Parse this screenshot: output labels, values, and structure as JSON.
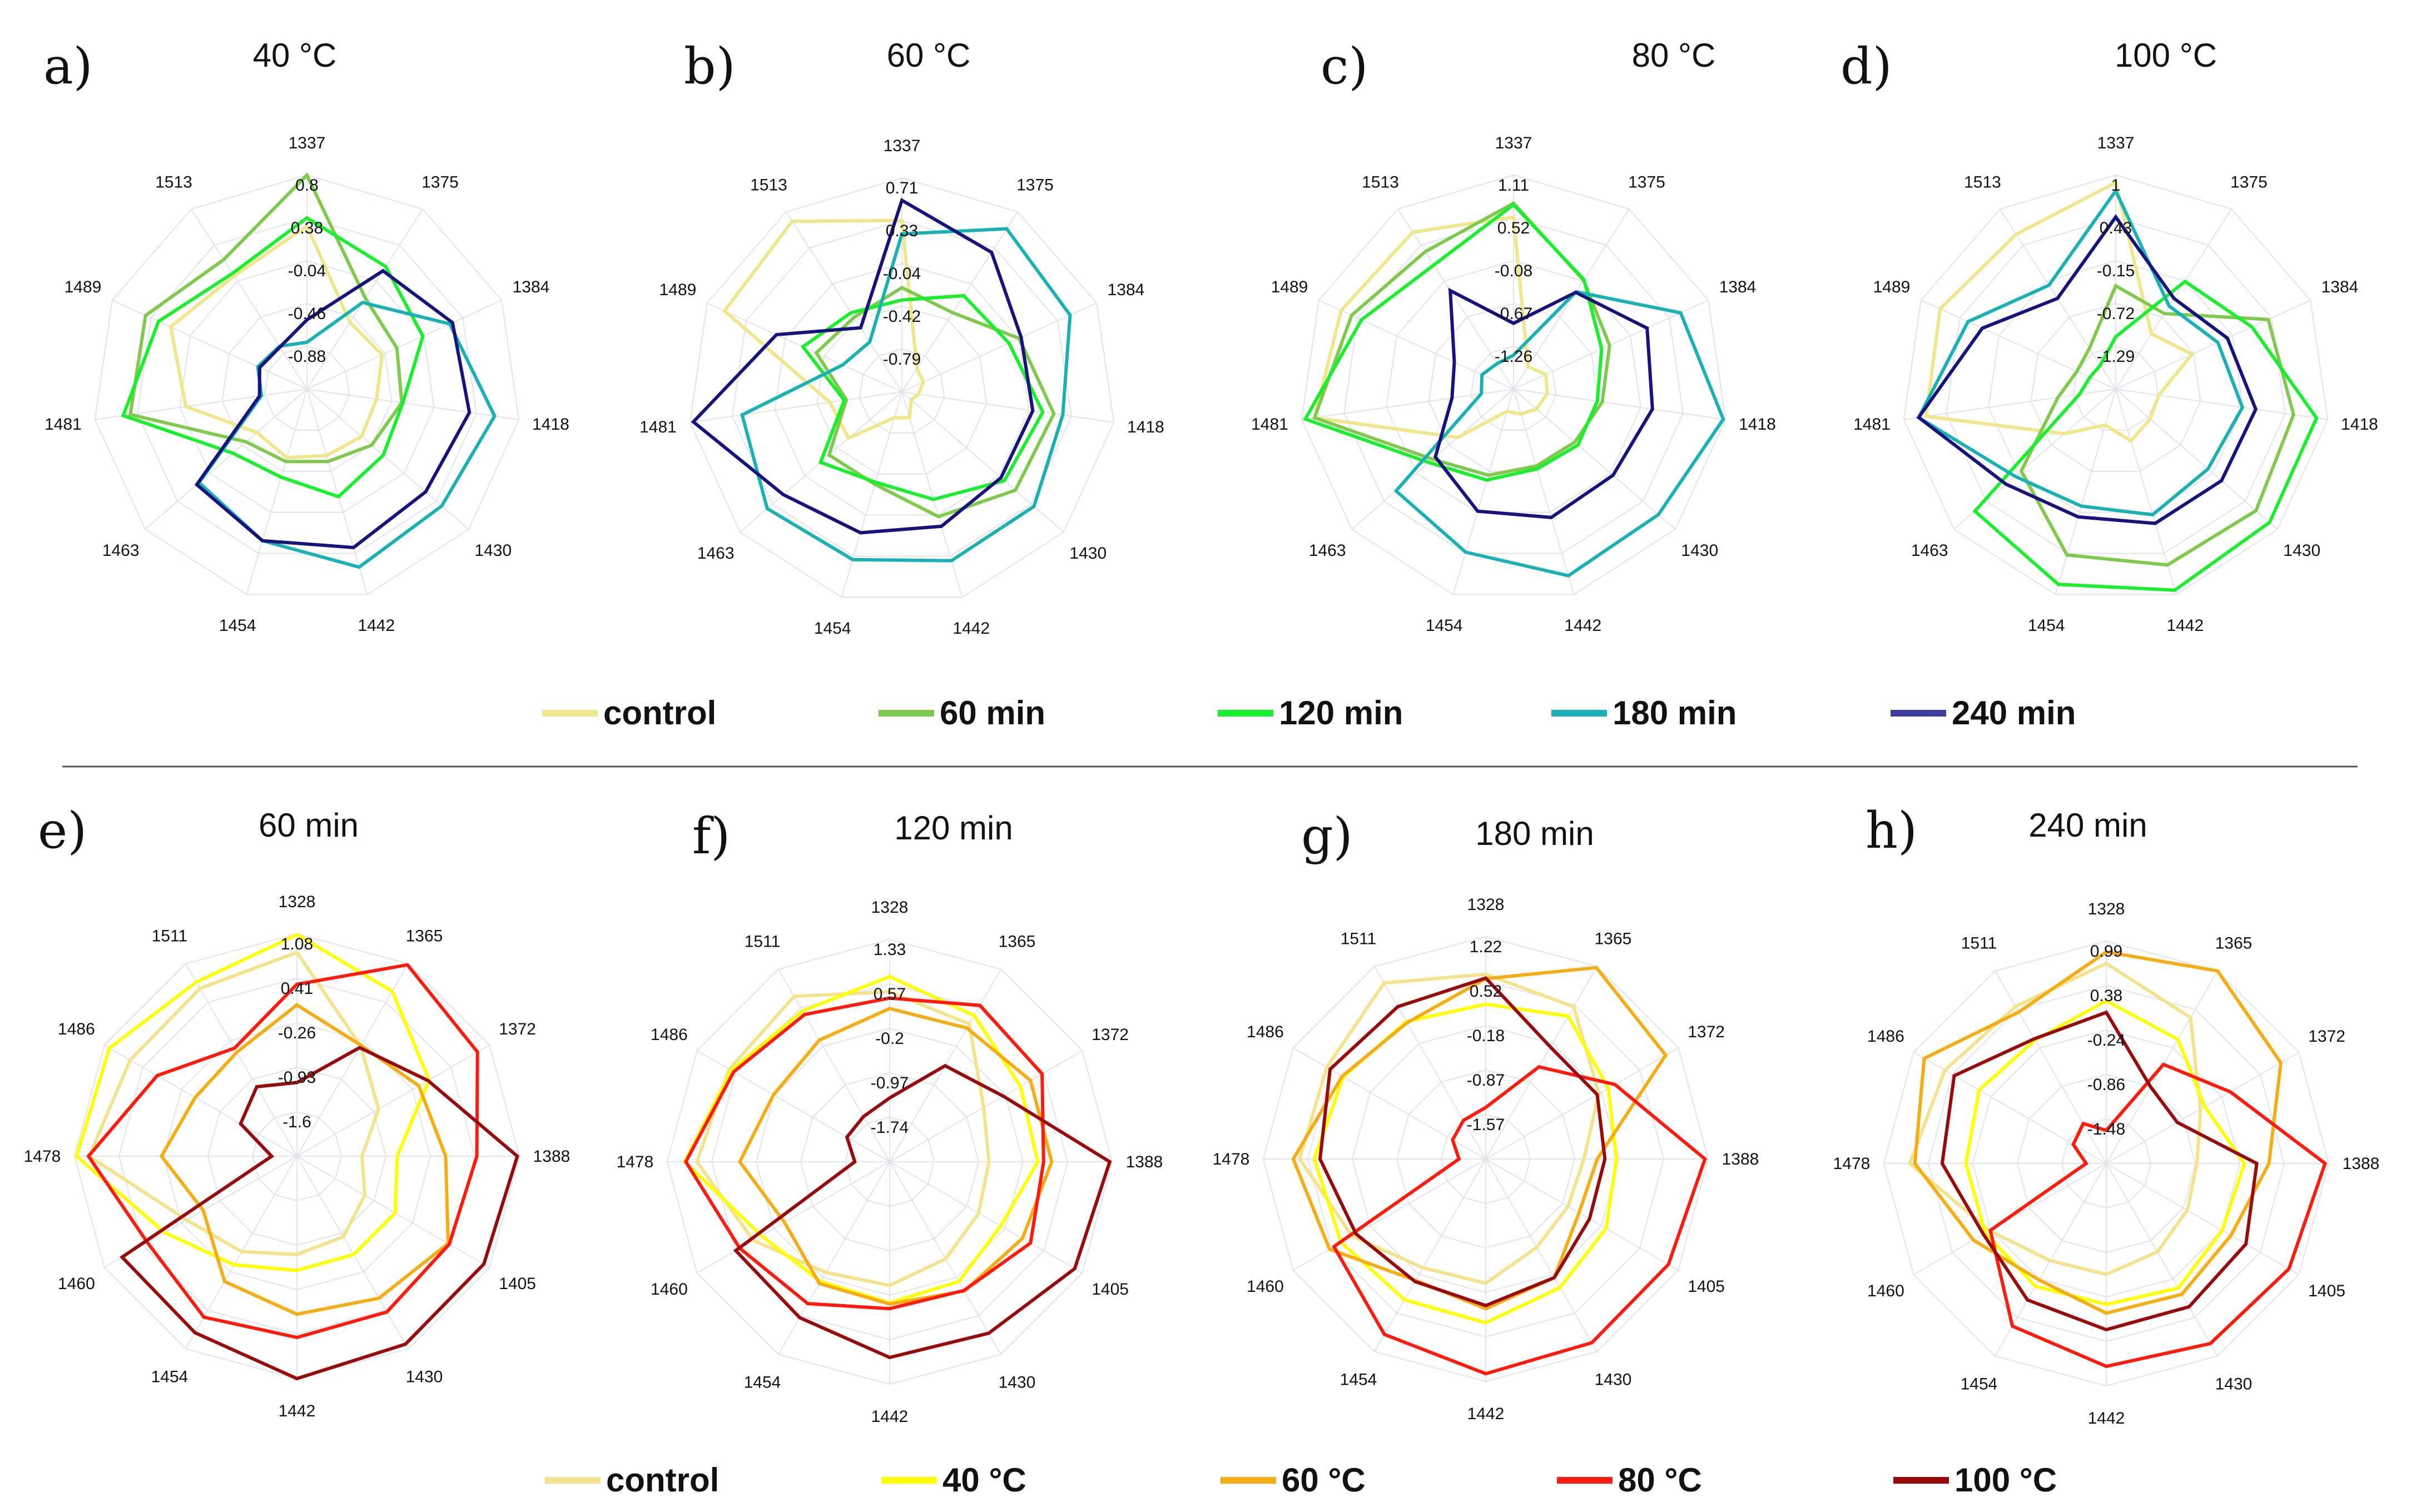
{
  "colors": {
    "control_time": "#f0e68c",
    "m60": "#7fca4d",
    "m120": "#19ef2d",
    "m180": "#1ab1b4",
    "m240": "#17137d",
    "control_temp": "#f4e38c",
    "c40": "#ffff00",
    "c60": "#f6ac13",
    "c80": "#ff1a0e",
    "c100": "#990b0b"
  },
  "legend_top": [
    {
      "label": "control",
      "color": "#f0e68c"
    },
    {
      "label": "60 min",
      "color": "#7fca4d"
    },
    {
      "label": "120 min",
      "color": "#19ef2d"
    },
    {
      "label": "180 min",
      "color": "#1ab1b4"
    },
    {
      "label": "240 min",
      "color": "#3d3d9e"
    }
  ],
  "legend_bottom": [
    {
      "label": "control",
      "color": "#f4e38c"
    },
    {
      "label": "40 °C",
      "color": "#ffff00"
    },
    {
      "label": "60 °C",
      "color": "#f6ac13"
    },
    {
      "label": "80 °C",
      "color": "#ff1a0e"
    },
    {
      "label": "100 °C",
      "color": "#990b0b"
    }
  ],
  "chart_data": [
    {
      "type": "radar",
      "letter": "a)",
      "title": "40 °C",
      "axes": [
        "1337",
        "1375",
        "1384",
        "1418",
        "1430",
        "1442",
        "1454",
        "1463",
        "1481",
        "1489",
        "1513"
      ],
      "tick_labels": [
        "0.8",
        "0.38",
        "-0.04",
        "-0.46",
        "-0.88"
      ],
      "range": [
        -1.3,
        0.8
      ],
      "series": [
        {
          "name": "control",
          "color": "#f0e68c",
          "values": [
            0.3,
            -0.52,
            -0.49,
            -0.61,
            -0.59,
            -0.62,
            -0.6,
            -0.65,
            -0.1,
            0.17,
            0.02
          ]
        },
        {
          "name": "60 min",
          "color": "#7fca4d",
          "values": [
            0.8,
            -0.24,
            -0.33,
            -0.36,
            -0.46,
            -0.56,
            -0.56,
            -0.51,
            0.45,
            0.44,
            0.21
          ]
        },
        {
          "name": "120 min",
          "color": "#19ef2d",
          "values": [
            0.38,
            0.13,
            -0.05,
            -0.35,
            -0.31,
            -0.2,
            -0.4,
            -0.34,
            0.52,
            0.3,
            0.05
          ]
        },
        {
          "name": "180 min",
          "color": "#1ab1b4",
          "values": [
            -0.84,
            -0.29,
            0.24,
            0.56,
            0.45,
            0.52,
            0.25,
            0.1,
            -0.85,
            -0.77,
            -0.8
          ]
        },
        {
          "name": "240 min",
          "color": "#17137d",
          "values": [
            -0.62,
            0.08,
            0.27,
            0.31,
            0.24,
            0.32,
            0.25,
            0.13,
            -0.83,
            -0.79,
            -0.81
          ]
        }
      ]
    },
    {
      "type": "radar",
      "letter": "b)",
      "title": "60 °C",
      "axes": [
        "1337",
        "1375",
        "1384",
        "1418",
        "1430",
        "1442",
        "1454",
        "1463",
        "1481",
        "1489",
        "1513"
      ],
      "tick_labels": [
        "0.71",
        "0.33",
        "-0.04",
        "-0.42",
        "-0.79"
      ],
      "range": [
        -1.2,
        0.71
      ],
      "series": [
        {
          "name": "control",
          "color": "#f0e68c",
          "values": [
            0.33,
            -0.95,
            -0.99,
            -1.05,
            -1.09,
            -0.96,
            -0.96,
            -0.57,
            -0.55,
            0.54,
            0.61
          ]
        },
        {
          "name": "60 min",
          "color": "#7fca4d",
          "values": [
            -0.27,
            -0.36,
            -0.05,
            0.17,
            0.14,
            -0.04,
            -0.34,
            -0.34,
            -0.7,
            -0.36,
            -0.41
          ]
        },
        {
          "name": "120 min",
          "color": "#19ef2d",
          "values": [
            -0.38,
            -0.18,
            -0.15,
            0.07,
            0.01,
            -0.2,
            -0.36,
            -0.24,
            -0.68,
            -0.23,
            -0.36
          ]
        },
        {
          "name": "180 min",
          "color": "#1ab1b4",
          "values": [
            0.21,
            0.53,
            0.45,
            0.25,
            0.36,
            0.37,
            0.36,
            0.39,
            0.24,
            -0.62,
            -0.67
          ]
        },
        {
          "name": "240 min",
          "color": "#17137d",
          "values": [
            0.51,
            0.28,
            -0.03,
            -0.02,
            -0.03,
            0.05,
            0.11,
            0.2,
            0.68,
            0.03,
            -0.52
          ]
        }
      ]
    },
    {
      "type": "radar",
      "letter": "c)",
      "title": "80 °C",
      "axes": [
        "1337",
        "1375",
        "1384",
        "1418",
        "1430",
        "1442",
        "1454",
        "1463",
        "1481",
        "1489",
        "1513"
      ],
      "tick_labels": [
        "1.11",
        "0.52",
        "-0.08",
        "-0.67",
        "-1.26"
      ],
      "range": [
        -1.85,
        1.11
      ],
      "series": [
        {
          "name": "control",
          "color": "#f0e68c",
          "values": [
            0.53,
            -1.48,
            -1.36,
            -1.38,
            -1.43,
            -1.49,
            -1.53,
            -0.83,
            0.93,
            0.77,
            0.73
          ]
        },
        {
          "name": "60 min",
          "color": "#7fca4d",
          "values": [
            0.72,
            -0.06,
            -0.39,
            -0.61,
            -0.73,
            -0.74,
            -0.61,
            -0.37,
            0.93,
            0.61,
            0.41
          ]
        },
        {
          "name": "120 min",
          "color": "#19ef2d",
          "values": [
            0.7,
            -0.05,
            -0.51,
            -0.68,
            -0.67,
            -0.7,
            -0.54,
            -0.3,
            1.06,
            0.46,
            0.19
          ]
        },
        {
          "name": "180 min",
          "color": "#1ab1b4",
          "values": [
            -1.38,
            -0.25,
            0.69,
            1.08,
            0.8,
            0.84,
            0.5,
            0.3,
            -1.4,
            -1.37,
            -1.43
          ]
        },
        {
          "name": "240 min",
          "color": "#17137d",
          "values": [
            -0.94,
            -0.26,
            0.18,
            0.09,
            -0.03,
            0.0,
            -0.09,
            -0.42,
            -0.99,
            -0.95,
            -0.23
          ]
        }
      ]
    },
    {
      "type": "radar",
      "letter": "d)",
      "title": "100 °C",
      "axes": [
        "1337",
        "1375",
        "1384",
        "1418",
        "1430",
        "1442",
        "1454",
        "1463",
        "1481",
        "1489",
        "1513"
      ],
      "tick_labels": [
        "1",
        "0.43",
        "-0.15",
        "-0.72",
        "-1.29"
      ],
      "range": [
        -1.86,
        1.0
      ],
      "series": [
        {
          "name": "control",
          "color": "#f0e68c",
          "values": [
            0.9,
            -0.98,
            -0.74,
            -1.28,
            -1.25,
            -1.14,
            -1.36,
            -0.95,
            0.7,
            0.72,
            0.6
          ]
        },
        {
          "name": "60 min",
          "color": "#7fca4d",
          "values": [
            -0.48,
            -0.66,
            0.38,
            0.54,
            0.62,
            0.59,
            0.45,
            -0.19,
            -1.08,
            -1.29,
            -1.21
          ]
        },
        {
          "name": "120 min",
          "color": "#19ef2d",
          "values": [
            -1.16,
            -0.15,
            0.14,
            0.85,
            0.86,
            0.94,
            0.86,
            0.63,
            -1.37,
            -1.48,
            -1.48
          ]
        },
        {
          "name": "180 min",
          "color": "#1ab1b4",
          "values": [
            0.79,
            -0.54,
            -0.36,
            -0.15,
            -0.23,
            -0.11,
            -0.23,
            -0.08,
            0.8,
            0.31,
            -0.21
          ]
        },
        {
          "name": "240 min",
          "color": "#17137d",
          "values": [
            0.44,
            -0.42,
            -0.22,
            0.03,
            0.01,
            0.01,
            -0.08,
            0.08,
            0.8,
            0.1,
            -0.42
          ]
        }
      ]
    },
    {
      "type": "radar",
      "letter": "e)",
      "title": "60 min",
      "axes": [
        "1328",
        "1365",
        "1372",
        "1388",
        "1405",
        "1430",
        "1442",
        "1454",
        "1460",
        "1478",
        "1486",
        "1511"
      ],
      "tick_labels": [
        "1.08",
        "0.41",
        "-0.26",
        "-0.93",
        "-1.6"
      ],
      "range": [
        -2.27,
        1.08
      ],
      "series": [
        {
          "name": "control",
          "color": "#f4e38c",
          "values": [
            0.8,
            -0.35,
            -0.85,
            -1.29,
            -1.09,
            -0.87,
            -0.79,
            -0.61,
            -0.35,
            0.86,
            0.63,
            0.65
          ]
        },
        {
          "name": "40 °C",
          "color": "#ffff00",
          "values": [
            1.07,
            0.6,
            0.03,
            -0.76,
            -0.56,
            -0.56,
            -0.55,
            -0.38,
            0.03,
            1.05,
            0.99,
            0.76
          ]
        },
        {
          "name": "60 °C",
          "color": "#f6ac13",
          "values": [
            0.01,
            -0.34,
            -0.15,
            -0.03,
            0.36,
            0.2,
            0.11,
            -0.09,
            -0.64,
            -0.23,
            -0.5,
            -0.46
          ]
        },
        {
          "name": "80 °C",
          "color": "#ff1a0e",
          "values": [
            0.32,
            1.06,
            0.87,
            0.44,
            0.38,
            0.44,
            0.46,
            0.53,
            0.33,
            0.87,
            0.16,
            -0.39
          ]
        },
        {
          "name": "100 °C",
          "color": "#990b0b",
          "values": [
            -1.16,
            -0.38,
            0.01,
            1.05,
            0.98,
            1.0,
            1.08,
            0.8,
            0.77,
            -1.89,
            -1.29,
            -1.06
          ]
        }
      ]
    },
    {
      "type": "radar",
      "letter": "f)",
      "title": "120 min",
      "axes": [
        "1328",
        "1365",
        "1372",
        "1388",
        "1405",
        "1430",
        "1442",
        "1454",
        "1460",
        "1478",
        "1486",
        "1511"
      ],
      "tick_labels": [
        "1.33",
        "0.57",
        "-0.2",
        "-0.97",
        "-1.74"
      ],
      "range": [
        -2.5,
        1.33
      ],
      "series": [
        {
          "name": "control",
          "color": "#f4e38c",
          "values": [
            0.43,
            0.24,
            -0.63,
            -0.79,
            -0.73,
            -0.57,
            -0.37,
            -0.3,
            0.21,
            0.82,
            0.69,
            0.79
          ]
        },
        {
          "name": "40 °C",
          "color": "#ffff00",
          "values": [
            0.69,
            0.41,
            0.1,
            0.05,
            -0.29,
            -0.12,
            -0.07,
            -0.12,
            0.05,
            1.03,
            0.65,
            0.5
          ]
        },
        {
          "name": "60 °C",
          "color": "#f6ac13",
          "values": [
            0.14,
            0.16,
            0.3,
            0.29,
            0.14,
            0.07,
            -0.05,
            -0.08,
            -0.41,
            0.08,
            -0.19,
            -0.08
          ]
        },
        {
          "name": "80 °C",
          "color": "#ff1a0e",
          "values": [
            0.32,
            0.61,
            0.53,
            0.15,
            0.3,
            0.06,
            0.03,
            0.32,
            0.48,
            1.01,
            0.6,
            0.43
          ]
        },
        {
          "name": "100 °C",
          "color": "#990b0b",
          "values": [
            -1.4,
            -0.59,
            -0.24,
            1.29,
            1.18,
            0.91,
            0.87,
            0.6,
            0.56,
            -1.9,
            -1.65,
            -1.6
          ]
        }
      ]
    },
    {
      "type": "radar",
      "letter": "g)",
      "title": "180 min",
      "axes": [
        "1328",
        "1365",
        "1372",
        "1388",
        "1405",
        "1430",
        "1442",
        "1454",
        "1460",
        "1478",
        "1486",
        "1511"
      ],
      "tick_labels": [
        "1.22",
        "0.52",
        "-0.18",
        "-0.87",
        "-1.57"
      ],
      "range": [
        -2.27,
        1.22
      ],
      "series": [
        {
          "name": "control",
          "color": "#f4e38c",
          "values": [
            0.63,
            0.49,
            -0.22,
            -0.73,
            -0.78,
            -0.67,
            -0.32,
            -0.3,
            0.15,
            0.65,
            0.61,
            0.92
          ]
        },
        {
          "name": "40 °C",
          "color": "#ffff00",
          "values": [
            0.16,
            0.32,
            -0.05,
            -0.22,
            -0.09,
            0.06,
            0.3,
            0.28,
            0.35,
            0.42,
            0.31,
            0.22
          ]
        },
        {
          "name": "60 °C",
          "color": "#f6ac13",
          "values": [
            0.56,
            1.2,
            0.99,
            -0.52,
            -0.58,
            -0.12,
            0.08,
            -0.07,
            0.56,
            0.75,
            0.33,
            0.2
          ]
        },
        {
          "name": "80 °C",
          "color": "#ff1a0e",
          "values": [
            -1.46,
            -0.6,
            0.07,
            1.17,
            1.04,
            1.06,
            1.1,
            0.91,
            0.48,
            -1.85,
            -1.67,
            -1.57
          ]
        },
        {
          "name": "100 °C",
          "color": "#990b0b",
          "values": [
            0.57,
            -0.24,
            -0.25,
            -0.4,
            -0.39,
            -0.12,
            0.03,
            -0.05,
            0.08,
            0.33,
            0.55,
            0.49
          ]
        }
      ]
    },
    {
      "type": "radar",
      "letter": "h)",
      "title": "240 min",
      "axes": [
        "1328",
        "1365",
        "1372",
        "1388",
        "1405",
        "1430",
        "1442",
        "1454",
        "1460",
        "1478",
        "1486",
        "1511"
      ],
      "tick_labels": [
        "0.99",
        "0.38",
        "-0.24",
        "-0.86",
        "-1.48"
      ],
      "range": [
        -2.1,
        0.99
      ],
      "series": [
        {
          "name": "control",
          "color": "#f4e38c",
          "values": [
            0.68,
            0.24,
            -0.59,
            -0.84,
            -0.8,
            -0.68,
            -0.56,
            -0.54,
            -0.23,
            0.63,
            0.49,
            0.42
          ]
        },
        {
          "name": "40 °C",
          "color": "#ffff00",
          "values": [
            0.16,
            -0.11,
            -0.52,
            -0.18,
            -0.24,
            -0.1,
            -0.14,
            -0.13,
            -0.16,
            -0.15,
            -0.06,
            -0.12
          ]
        },
        {
          "name": "60 °C",
          "color": "#f6ac13",
          "values": [
            0.84,
            1.06,
            0.7,
            0.16,
            -0.1,
            0.0,
            -0.02,
            -0.23,
            0.03,
            0.56,
            0.82,
            0.33
          ]
        },
        {
          "name": "80 °C",
          "color": "#ff1a0e",
          "values": [
            -1.64,
            -0.51,
            -0.11,
            0.94,
            0.83,
            0.79,
            0.72,
            0.51,
            -0.24,
            -1.82,
            -1.57,
            -1.46
          ]
        },
        {
          "name": "100 °C",
          "color": "#990b0b",
          "values": [
            0.0,
            -0.87,
            -0.96,
            -0.01,
            0.14,
            0.2,
            0.21,
            0.09,
            -0.13,
            0.18,
            0.34,
            -0.1
          ]
        }
      ]
    }
  ]
}
